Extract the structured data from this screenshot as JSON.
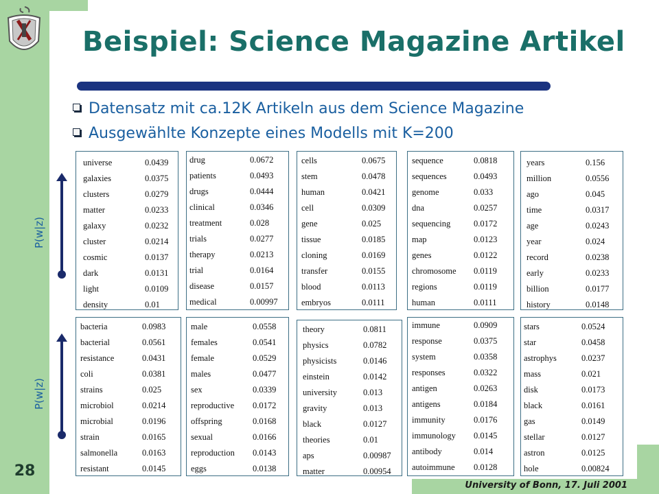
{
  "slide": {
    "title": "Beispiel: Science Magazine Artikel",
    "bullets": [
      "Datensatz mit ca.12K Artikeln aus dem Science Magazine",
      "Ausgewählte  Konzepte eines Modells mit K=200"
    ],
    "axis_label": "P(w|z)",
    "page_number": "28",
    "footer": "University of Bonn, 17. Juli 2001"
  },
  "colors": {
    "band": "#a8d5a2",
    "title": "#1a6f68",
    "bar": "#1a3380",
    "bullet_text": "#1a5fa0"
  },
  "tables": [
    {
      "rows": [
        [
          "universe",
          "0.0439"
        ],
        [
          "galaxies",
          "0.0375"
        ],
        [
          "clusters",
          "0.0279"
        ],
        [
          "matter",
          "0.0233"
        ],
        [
          "galaxy",
          "0.0232"
        ],
        [
          "cluster",
          "0.0214"
        ],
        [
          "cosmic",
          "0.0137"
        ],
        [
          "dark",
          "0.0131"
        ],
        [
          "light",
          "0.0109"
        ],
        [
          "density",
          "0.01"
        ]
      ]
    },
    {
      "rows": [
        [
          "drug",
          "0.0672"
        ],
        [
          "patients",
          "0.0493"
        ],
        [
          "drugs",
          "0.0444"
        ],
        [
          "clinical",
          "0.0346"
        ],
        [
          "treatment",
          "0.028"
        ],
        [
          "trials",
          "0.0277"
        ],
        [
          "therapy",
          "0.0213"
        ],
        [
          "trial",
          "0.0164"
        ],
        [
          "disease",
          "0.0157"
        ],
        [
          "medical",
          "0.00997"
        ]
      ]
    },
    {
      "rows": [
        [
          "cells",
          "0.0675"
        ],
        [
          "stem",
          "0.0478"
        ],
        [
          "human",
          "0.0421"
        ],
        [
          "cell",
          "0.0309"
        ],
        [
          "gene",
          "0.025"
        ],
        [
          "tissue",
          "0.0185"
        ],
        [
          "cloning",
          "0.0169"
        ],
        [
          "transfer",
          "0.0155"
        ],
        [
          "blood",
          "0.0113"
        ],
        [
          "embryos",
          "0.0111"
        ]
      ]
    },
    {
      "rows": [
        [
          "sequence",
          "0.0818"
        ],
        [
          "sequences",
          "0.0493"
        ],
        [
          "genome",
          "0.033"
        ],
        [
          "dna",
          "0.0257"
        ],
        [
          "sequencing",
          "0.0172"
        ],
        [
          "map",
          "0.0123"
        ],
        [
          "genes",
          "0.0122"
        ],
        [
          "chromosome",
          "0.0119"
        ],
        [
          "regions",
          "0.0119"
        ],
        [
          "human",
          "0.0111"
        ]
      ]
    },
    {
      "rows": [
        [
          "years",
          "0.156"
        ],
        [
          "million",
          "0.0556"
        ],
        [
          "ago",
          "0.045"
        ],
        [
          "time",
          "0.0317"
        ],
        [
          "age",
          "0.0243"
        ],
        [
          "year",
          "0.024"
        ],
        [
          "record",
          "0.0238"
        ],
        [
          "early",
          "0.0233"
        ],
        [
          "billion",
          "0.0177"
        ],
        [
          "history",
          "0.0148"
        ]
      ]
    },
    {
      "rows": [
        [
          "bacteria",
          "0.0983"
        ],
        [
          "bacterial",
          "0.0561"
        ],
        [
          "resistance",
          "0.0431"
        ],
        [
          "coli",
          "0.0381"
        ],
        [
          "strains",
          "0.025"
        ],
        [
          "microbiol",
          "0.0214"
        ],
        [
          "microbial",
          "0.0196"
        ],
        [
          "strain",
          "0.0165"
        ],
        [
          "salmonella",
          "0.0163"
        ],
        [
          "resistant",
          "0.0145"
        ]
      ]
    },
    {
      "rows": [
        [
          "male",
          "0.0558"
        ],
        [
          "females",
          "0.0541"
        ],
        [
          "female",
          "0.0529"
        ],
        [
          "males",
          "0.0477"
        ],
        [
          "sex",
          "0.0339"
        ],
        [
          "reproductive",
          "0.0172"
        ],
        [
          "offspring",
          "0.0168"
        ],
        [
          "sexual",
          "0.0166"
        ],
        [
          "reproduction",
          "0.0143"
        ],
        [
          "eggs",
          "0.0138"
        ]
      ]
    },
    {
      "rows": [
        [
          "theory",
          "0.0811"
        ],
        [
          "physics",
          "0.0782"
        ],
        [
          "physicists",
          "0.0146"
        ],
        [
          "einstein",
          "0.0142"
        ],
        [
          "university",
          "0.013"
        ],
        [
          "gravity",
          "0.013"
        ],
        [
          "black",
          "0.0127"
        ],
        [
          "theories",
          "0.01"
        ],
        [
          "aps",
          "0.00987"
        ],
        [
          "matter",
          "0.00954"
        ]
      ]
    },
    {
      "rows": [
        [
          "immune",
          "0.0909"
        ],
        [
          "response",
          "0.0375"
        ],
        [
          "system",
          "0.0358"
        ],
        [
          "responses",
          "0.0322"
        ],
        [
          "antigen",
          "0.0263"
        ],
        [
          "antigens",
          "0.0184"
        ],
        [
          "immunity",
          "0.0176"
        ],
        [
          "immunology",
          "0.0145"
        ],
        [
          "antibody",
          "0.014"
        ],
        [
          "autoimmune",
          "0.0128"
        ]
      ]
    },
    {
      "rows": [
        [
          "stars",
          "0.0524"
        ],
        [
          "star",
          "0.0458"
        ],
        [
          "astrophys",
          "0.0237"
        ],
        [
          "mass",
          "0.021"
        ],
        [
          "disk",
          "0.0173"
        ],
        [
          "black",
          "0.0161"
        ],
        [
          "gas",
          "0.0149"
        ],
        [
          "stellar",
          "0.0127"
        ],
        [
          "astron",
          "0.0125"
        ],
        [
          "hole",
          "0.00824"
        ]
      ]
    }
  ]
}
